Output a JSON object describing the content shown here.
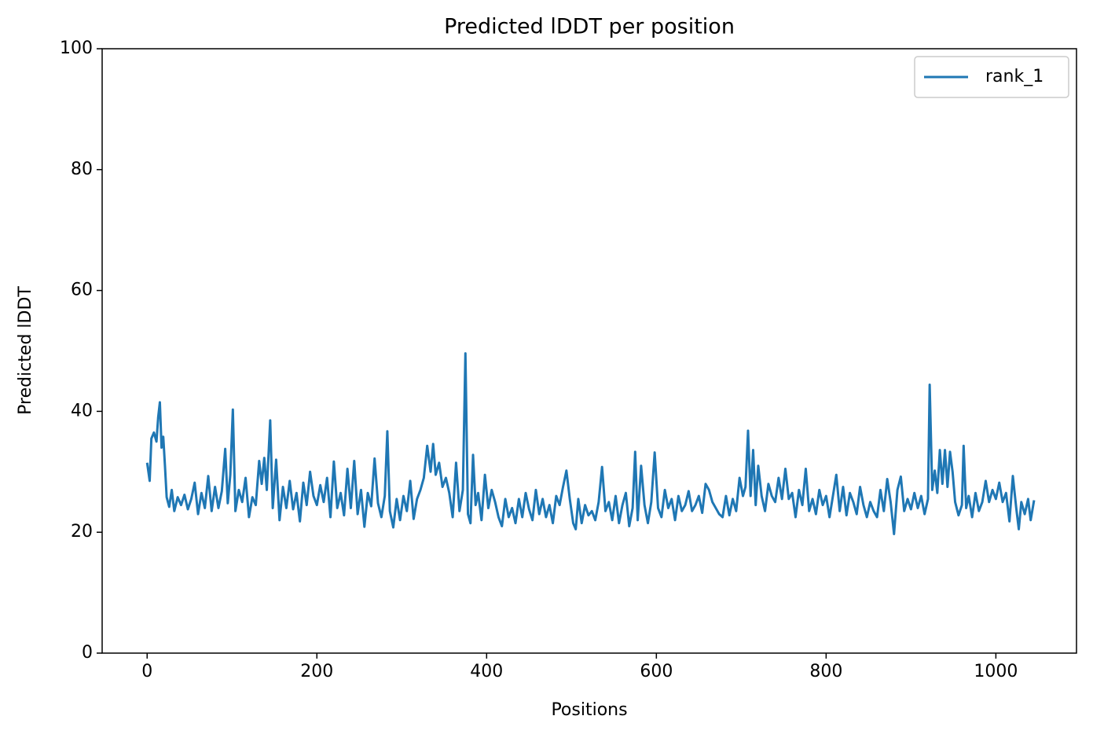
{
  "chart_data": {
    "type": "line",
    "title": "Predicted lDDT per position",
    "x_label": "Positions",
    "y_label": "Predicted lDDT",
    "xlim": [
      -53,
      1095
    ],
    "ylim": [
      0,
      100
    ],
    "xticks": [
      0,
      200,
      400,
      600,
      800,
      1000
    ],
    "yticks": [
      0,
      20,
      40,
      60,
      80,
      100
    ],
    "legend": "upper right",
    "grid": false,
    "series": [
      {
        "name": "rank_1",
        "color": "#1f77b4",
        "x": [
          0,
          3,
          5,
          8,
          11,
          13,
          15,
          17,
          19,
          21,
          23,
          26,
          29,
          32,
          36,
          40,
          44,
          48,
          52,
          56,
          60,
          64,
          68,
          72,
          76,
          80,
          84,
          88,
          92,
          95,
          98,
          101,
          104,
          108,
          112,
          116,
          120,
          124,
          128,
          132,
          135,
          138,
          141,
          145,
          148,
          152,
          156,
          160,
          164,
          168,
          172,
          176,
          180,
          184,
          188,
          192,
          196,
          200,
          204,
          208,
          212,
          216,
          220,
          224,
          228,
          232,
          236,
          240,
          244,
          248,
          252,
          256,
          260,
          264,
          268,
          272,
          276,
          280,
          283,
          286,
          290,
          294,
          298,
          302,
          306,
          310,
          314,
          318,
          322,
          326,
          330,
          334,
          337,
          340,
          344,
          348,
          352,
          356,
          360,
          364,
          368,
          372,
          375,
          378,
          381,
          384,
          387,
          390,
          394,
          398,
          402,
          406,
          410,
          414,
          418,
          422,
          426,
          430,
          434,
          438,
          442,
          446,
          450,
          454,
          458,
          462,
          466,
          470,
          474,
          478,
          482,
          486,
          490,
          494,
          498,
          502,
          505,
          508,
          512,
          516,
          520,
          524,
          528,
          532,
          536,
          540,
          544,
          548,
          552,
          556,
          560,
          564,
          568,
          572,
          575,
          578,
          582,
          586,
          590,
          594,
          598,
          602,
          606,
          610,
          614,
          618,
          622,
          626,
          630,
          634,
          638,
          642,
          646,
          650,
          654,
          658,
          662,
          666,
          670,
          674,
          678,
          682,
          686,
          690,
          694,
          698,
          702,
          705,
          708,
          711,
          714,
          717,
          720,
          724,
          728,
          732,
          736,
          740,
          744,
          748,
          752,
          756,
          760,
          764,
          768,
          772,
          776,
          780,
          784,
          788,
          792,
          796,
          800,
          804,
          808,
          812,
          816,
          820,
          824,
          828,
          832,
          836,
          840,
          844,
          848,
          852,
          856,
          860,
          864,
          868,
          872,
          876,
          880,
          884,
          888,
          892,
          896,
          900,
          904,
          908,
          912,
          916,
          920,
          922,
          925,
          928,
          931,
          934,
          937,
          940,
          943,
          946,
          949,
          952,
          956,
          960,
          962,
          965,
          968,
          972,
          976,
          980,
          984,
          988,
          992,
          996,
          1000,
          1004,
          1008,
          1012,
          1016,
          1020,
          1024,
          1027,
          1030,
          1034,
          1038,
          1041,
          1045
        ],
        "values": [
          31.5,
          28.5,
          35.5,
          36.5,
          35,
          39,
          41.5,
          34,
          35.8,
          31,
          25.8,
          24.2,
          27,
          23.5,
          25.8,
          24.5,
          26.2,
          23.8,
          25.5,
          28.2,
          23,
          26.5,
          24,
          29.3,
          23.5,
          27.5,
          24,
          26.8,
          33.8,
          24.8,
          29.5,
          40.3,
          23.5,
          27,
          25,
          29,
          22.5,
          25.8,
          24.5,
          31.8,
          28,
          32.3,
          27,
          38.5,
          24,
          32,
          22,
          27.5,
          24,
          28.5,
          23.8,
          26.5,
          21.8,
          28.2,
          24.5,
          30,
          26,
          24.5,
          27.8,
          25,
          29,
          22.5,
          31.7,
          24,
          26.5,
          22.8,
          30.5,
          24,
          31.8,
          23,
          27,
          20.9,
          26.5,
          24.3,
          32.2,
          24.8,
          22.5,
          26,
          36.7,
          23.5,
          20.8,
          25.5,
          22,
          26,
          23.5,
          28.5,
          22.2,
          25.5,
          27,
          29,
          34.3,
          30,
          34.6,
          29.5,
          31.5,
          27.5,
          29,
          26.5,
          22.5,
          31.5,
          23.5,
          27,
          49.6,
          23,
          21.5,
          32.8,
          24.5,
          26.5,
          22,
          29.5,
          24,
          27,
          25,
          22.5,
          21,
          25.5,
          22.5,
          24,
          21.5,
          25.5,
          22.5,
          26.5,
          23.8,
          22,
          27,
          23,
          25.5,
          22.5,
          24.5,
          21.5,
          26,
          24.5,
          27.5,
          30.2,
          25.5,
          21.5,
          20.5,
          25.5,
          21.5,
          24.5,
          22.8,
          23.5,
          22,
          25,
          30.8,
          23.5,
          25,
          22,
          26,
          21.5,
          24.5,
          26.5,
          21,
          24,
          33.3,
          22,
          31,
          24.5,
          21.5,
          25,
          33.2,
          24,
          22.5,
          27,
          24,
          25.5,
          22,
          26,
          23.5,
          24.5,
          26.8,
          23.5,
          24.5,
          26,
          23.2,
          28,
          27,
          25,
          24,
          23,
          22.5,
          26,
          22.8,
          25.5,
          23.5,
          29,
          26,
          27.5,
          36.8,
          26,
          33.6,
          24.5,
          31,
          26,
          23.5,
          28,
          26,
          25,
          29,
          25.5,
          30.5,
          25.5,
          26.5,
          22.5,
          27,
          24.5,
          30.5,
          23.5,
          25.5,
          23,
          27,
          24.5,
          26,
          22.5,
          26,
          29.5,
          23.5,
          27.5,
          22.8,
          26.5,
          25,
          23,
          27.5,
          24.5,
          22.5,
          25,
          23.5,
          22.5,
          27,
          23.5,
          28.8,
          25,
          19.7,
          27,
          29.2,
          23.5,
          25.5,
          23.8,
          26.5,
          24,
          26,
          23,
          25.5,
          44.4,
          27,
          30.2,
          26.5,
          33.6,
          28,
          33.6,
          27.5,
          33.3,
          30,
          25,
          22.8,
          24.5,
          34.3,
          24,
          26,
          22.5,
          26.5,
          23.5,
          25,
          28.5,
          25,
          27,
          25.5,
          28.2,
          25,
          26.5,
          21.8,
          29.3,
          24,
          20.5,
          25,
          23,
          25.5,
          22,
          25.3
        ]
      }
    ]
  }
}
